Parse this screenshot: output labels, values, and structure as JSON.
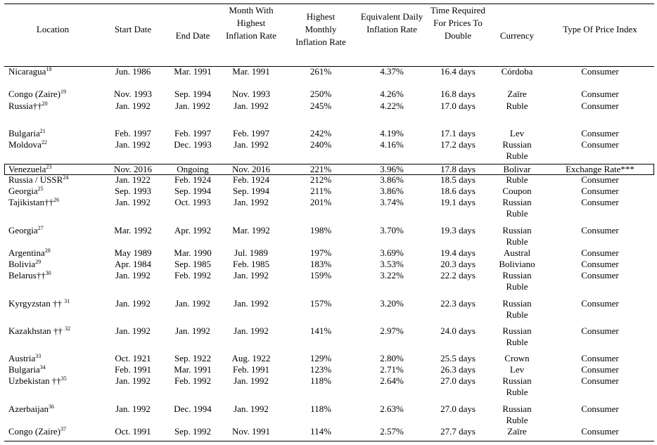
{
  "headers": [
    "Location",
    "Start Date",
    "End Date",
    "Month With Highest Inflation Rate",
    "Highest Monthly Inflation Rate",
    "Equivalent Daily Inflation Rate",
    "Time Required For Prices To Double",
    "Currency",
    "Type Of Price Index"
  ],
  "rows": [
    {
      "location": "Nicaragua",
      "note": "18",
      "start": "Jun. 1986",
      "end": "Mar. 1991",
      "month": "Mar. 1991",
      "monthly": "261%",
      "daily": "4.37%",
      "double": "16.4 days",
      "currency": "Córdoba",
      "index": "Consumer"
    },
    {
      "location": "Congo (Zaire)",
      "note": "19",
      "start": "Nov. 1993",
      "end": "Sep. 1994",
      "month": "Nov. 1993",
      "monthly": "250%",
      "daily": "4.26%",
      "double": "16.8 days",
      "currency": "Zaïre",
      "index": "Consumer"
    },
    {
      "location": "Russia††",
      "note": "20",
      "start": "Jan. 1992",
      "end": "Jan. 1992",
      "month": "Jan. 1992",
      "monthly": "245%",
      "daily": "4.22%",
      "double": "17.0 days",
      "currency": "Ruble",
      "index": "Consumer"
    },
    {
      "location": "Bulgaria",
      "note": "21",
      "start": "Feb. 1997",
      "end": "Feb. 1997",
      "month": "Feb. 1997",
      "monthly": "242%",
      "daily": "4.19%",
      "double": "17.1 days",
      "currency": "Lev",
      "index": "Consumer"
    },
    {
      "location": "Moldova",
      "note": "22",
      "start": "Jan. 1992",
      "end": "Dec. 1993",
      "month": "Jan. 1992",
      "monthly": "240%",
      "daily": "4.16%",
      "double": "17.2 days",
      "currency": "Russian Ruble",
      "index": "Consumer"
    },
    {
      "location": "Venezuela",
      "note": "23",
      "start": "Nov. 2016",
      "end": "Ongoing",
      "month": "Nov. 2016",
      "monthly": "221%",
      "daily": "3.96%",
      "double": "17.8 days",
      "currency": "Bolivar",
      "index": "Exchange Rate***",
      "highlighted": true
    },
    {
      "location": "Russia / USSR",
      "note": "24",
      "start": "Jan. 1922",
      "end": "Feb. 1924",
      "month": "Feb. 1924",
      "monthly": "212%",
      "daily": "3.86%",
      "double": "18.5 days",
      "currency": "Ruble",
      "index": "Consumer"
    },
    {
      "location": "Georgia",
      "note": "25",
      "start": "Sep. 1993",
      "end": "Sep. 1994",
      "month": "Sep. 1994",
      "monthly": "211%",
      "daily": "3.86%",
      "double": "18.6 days",
      "currency": "Coupon",
      "index": "Consumer"
    },
    {
      "location": "Tajikistan††",
      "note": "26",
      "start": "Jan. 1992",
      "end": "Oct. 1993",
      "month": "Jan. 1992",
      "monthly": "201%",
      "daily": "3.74%",
      "double": "19.1 days",
      "currency": "Russian Ruble",
      "index": "Consumer"
    },
    {
      "location": "Georgia",
      "note": "27",
      "start": "Mar. 1992",
      "end": "Apr. 1992",
      "month": "Mar. 1992",
      "monthly": "198%",
      "daily": "3.70%",
      "double": "19.3 days",
      "currency": "Russian Ruble",
      "index": "Consumer"
    },
    {
      "location": "Argentina",
      "note": "28",
      "start": "May 1989",
      "end": "Mar. 1990",
      "month": "Jul. 1989",
      "monthly": "197%",
      "daily": "3.69%",
      "double": "19.4 days",
      "currency": "Austral",
      "index": "Consumer"
    },
    {
      "location": "Bolivia",
      "note": "29",
      "start": "Apr. 1984",
      "end": "Sep. 1985",
      "month": "Feb. 1985",
      "monthly": "183%",
      "daily": "3.53%",
      "double": "20.3 days",
      "currency": "Boliviano",
      "index": "Consumer"
    },
    {
      "location": "Belarus††",
      "note": "30",
      "start": "Jan. 1992",
      "end": "Feb. 1992",
      "month": "Jan. 1992",
      "monthly": "159%",
      "daily": "3.22%",
      "double": "22.2 days",
      "currency": "Russian Ruble",
      "index": "Consumer"
    },
    {
      "location": "Kyrgyzstan †† ",
      "note": "31",
      "start": "Jan. 1992",
      "end": "Jan. 1992",
      "month": "Jan. 1992",
      "monthly": "157%",
      "daily": "3.20%",
      "double": "22.3 days",
      "currency": "Russian Ruble",
      "index": "Consumer"
    },
    {
      "location": "Kazakhstan †† ",
      "note": "32",
      "start": "Jan. 1992",
      "end": "Jan. 1992",
      "month": "Jan. 1992",
      "monthly": "141%",
      "daily": "2.97%",
      "double": "24.0 days",
      "currency": "Russian Ruble",
      "index": "Consumer"
    },
    {
      "location": "Austria",
      "note": "33",
      "start": "Oct. 1921",
      "end": "Sep. 1922",
      "month": "Aug. 1922",
      "monthly": "129%",
      "daily": "2.80%",
      "double": "25.5 days",
      "currency": "Crown",
      "index": "Consumer"
    },
    {
      "location": "Bulgaria",
      "note": "34",
      "start": "Feb. 1991",
      "end": "Mar. 1991",
      "month": "Feb. 1991",
      "monthly": "123%",
      "daily": "2.71%",
      "double": "26.3 days",
      "currency": "Lev",
      "index": "Consumer"
    },
    {
      "location": "Uzbekistan ††",
      "note": "35",
      "start": "Jan. 1992",
      "end": "Feb. 1992",
      "month": "Jan. 1992",
      "monthly": "118%",
      "daily": "2.64%",
      "double": "27.0 days",
      "currency": "Russian Ruble",
      "index": "Consumer"
    },
    {
      "location": "Azerbaijan",
      "note": "36",
      "start": "Jan. 1992",
      "end": "Dec. 1994",
      "month": "Jan. 1992",
      "monthly": "118%",
      "daily": "2.63%",
      "double": "27.0 days",
      "currency": "Russian Ruble",
      "index": "Consumer"
    },
    {
      "location": "Congo (Zaire)",
      "note": "37",
      "start": "Oct. 1991",
      "end": "Sep. 1992",
      "month": "Nov. 1991",
      "monthly": "114%",
      "daily": "2.57%",
      "double": "27.7 days",
      "currency": "Zaïre",
      "index": "Consumer"
    }
  ]
}
